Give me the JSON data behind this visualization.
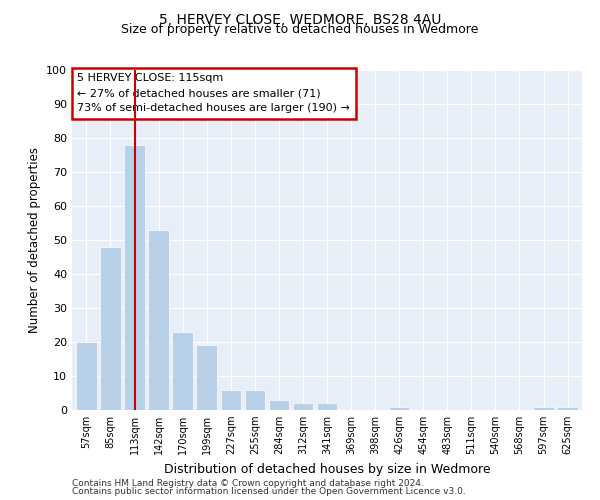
{
  "title1": "5, HERVEY CLOSE, WEDMORE, BS28 4AU",
  "title2": "Size of property relative to detached houses in Wedmore",
  "xlabel": "Distribution of detached houses by size in Wedmore",
  "ylabel": "Number of detached properties",
  "categories": [
    "57sqm",
    "85sqm",
    "113sqm",
    "142sqm",
    "170sqm",
    "199sqm",
    "227sqm",
    "255sqm",
    "284sqm",
    "312sqm",
    "341sqm",
    "369sqm",
    "398sqm",
    "426sqm",
    "454sqm",
    "483sqm",
    "511sqm",
    "540sqm",
    "568sqm",
    "597sqm",
    "625sqm"
  ],
  "values": [
    20,
    48,
    78,
    53,
    23,
    19,
    6,
    6,
    3,
    2,
    2,
    0,
    0,
    1,
    0,
    0,
    0,
    0,
    0,
    1,
    1
  ],
  "bar_color": "#b8d0e8",
  "bar_edgecolor": "#b8d0e8",
  "vline_x": 2,
  "vline_color": "#cc0000",
  "annotation_text": "5 HERVEY CLOSE: 115sqm\n← 27% of detached houses are smaller (71)\n73% of semi-detached houses are larger (190) →",
  "annotation_box_color": "#cc0000",
  "ylim": [
    0,
    100
  ],
  "yticks": [
    0,
    10,
    20,
    30,
    40,
    50,
    60,
    70,
    80,
    90,
    100
  ],
  "bg_color": "#e8eef8",
  "footer_line1": "Contains HM Land Registry data © Crown copyright and database right 2024.",
  "footer_line2": "Contains public sector information licensed under the Open Government Licence v3.0."
}
